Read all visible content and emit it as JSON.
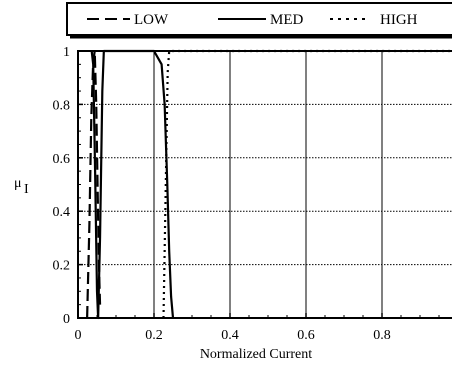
{
  "chart_data": {
    "type": "line",
    "xlabel": "Normalized Current",
    "ylabel": "μ",
    "ylabel_sub": "I",
    "xlim": [
      0,
      1
    ],
    "ylim": [
      0,
      1
    ],
    "grid": true,
    "legend_position": "top",
    "x_ticks": [
      {
        "value": 0,
        "label": "0"
      },
      {
        "value": 0.2,
        "label": "0.2"
      },
      {
        "value": 0.4,
        "label": "0.4"
      },
      {
        "value": 0.6,
        "label": "0.6"
      },
      {
        "value": 0.8,
        "label": "0.8"
      }
    ],
    "y_ticks": [
      {
        "value": 0,
        "label": "0"
      },
      {
        "value": 0.2,
        "label": "0.2"
      },
      {
        "value": 0.4,
        "label": "0.4"
      },
      {
        "value": 0.6,
        "label": "0.6"
      },
      {
        "value": 0.8,
        "label": "0.8"
      },
      {
        "value": 1,
        "label": "1"
      }
    ],
    "series": [
      {
        "name": "LOW",
        "style": "dashed",
        "points": [
          {
            "x": 0.024,
            "y": 0.0
          },
          {
            "x": 0.03,
            "y": 0.35
          },
          {
            "x": 0.035,
            "y": 0.75
          },
          {
            "x": 0.04,
            "y": 0.96
          },
          {
            "x": 0.044,
            "y": 1.0
          },
          {
            "x": 0.048,
            "y": 0.8
          },
          {
            "x": 0.052,
            "y": 0.45
          },
          {
            "x": 0.056,
            "y": 0.15
          },
          {
            "x": 0.058,
            "y": 0.05
          }
        ]
      },
      {
        "name": "MED",
        "style": "solid",
        "points": [
          {
            "x": 0.036,
            "y": 1.0
          },
          {
            "x": 0.04,
            "y": 0.95
          },
          {
            "x": 0.045,
            "y": 0.55
          },
          {
            "x": 0.05,
            "y": 0.1
          },
          {
            "x": 0.053,
            "y": 0.0
          },
          {
            "x": 0.058,
            "y": 0.3
          },
          {
            "x": 0.064,
            "y": 0.85
          },
          {
            "x": 0.068,
            "y": 1.0
          },
          {
            "x": 0.2,
            "y": 1.0
          },
          {
            "x": 0.22,
            "y": 0.95
          },
          {
            "x": 0.228,
            "y": 0.8
          },
          {
            "x": 0.235,
            "y": 0.5
          },
          {
            "x": 0.24,
            "y": 0.25
          },
          {
            "x": 0.245,
            "y": 0.08
          },
          {
            "x": 0.25,
            "y": 0.0
          }
        ]
      },
      {
        "name": "HIGH",
        "style": "dotted",
        "points": [
          {
            "x": 0.225,
            "y": 0.0
          },
          {
            "x": 0.231,
            "y": 0.5
          },
          {
            "x": 0.236,
            "y": 0.92
          },
          {
            "x": 0.24,
            "y": 1.0
          },
          {
            "x": 1.0,
            "y": 1.0
          }
        ]
      }
    ]
  }
}
